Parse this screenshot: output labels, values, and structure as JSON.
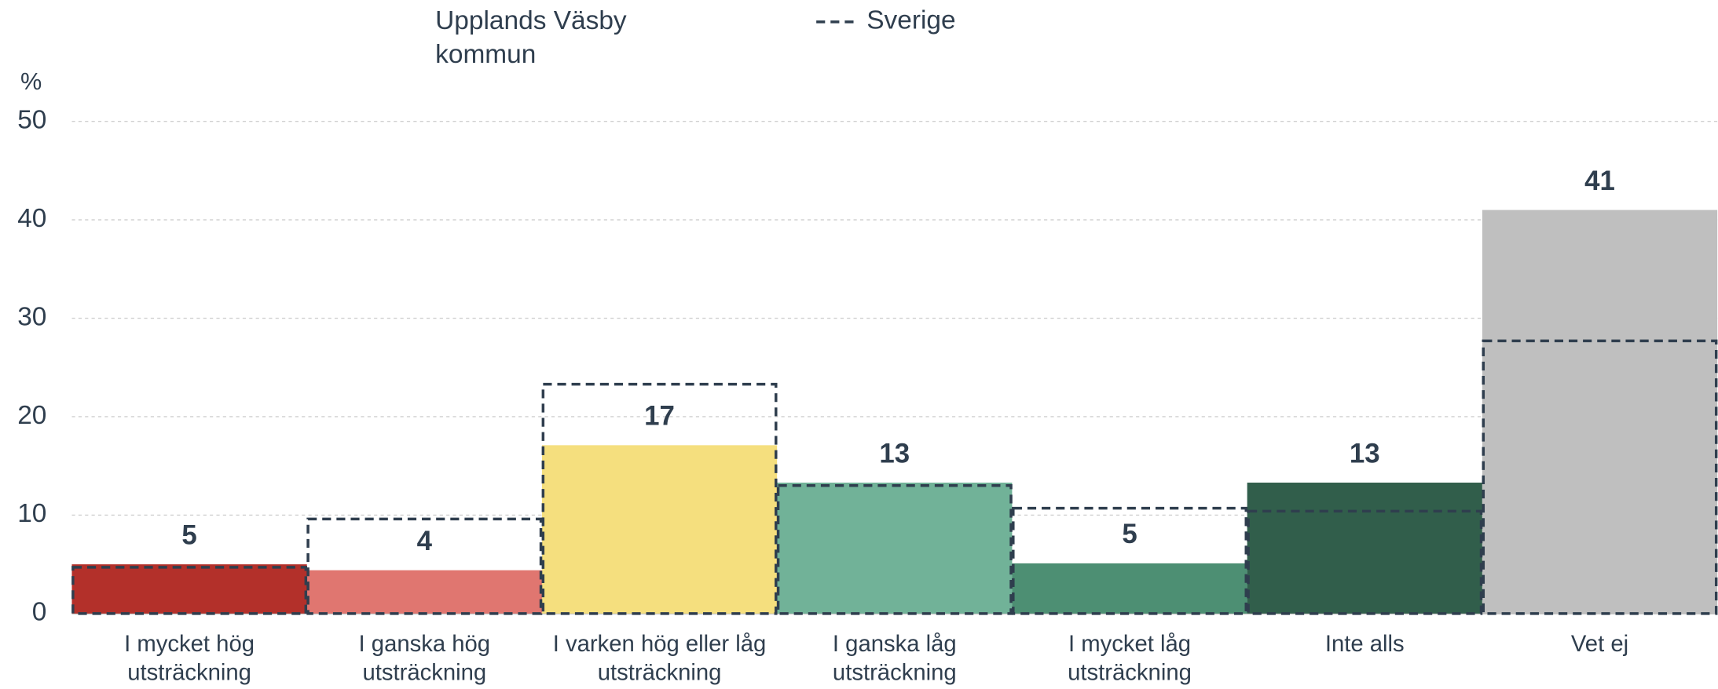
{
  "chart_data": {
    "type": "bar",
    "y_unit": "%",
    "categories": [
      "I mycket hög utsträckning",
      "I ganska hög utsträckning",
      "I varken hög eller låg utsträckning",
      "I ganska låg utsträckning",
      "I mycket låg utsträckning",
      "Inte alls",
      "Vet ej"
    ],
    "series": [
      {
        "name": "Upplands Väsby kommun",
        "colors": [
          "#b3302a",
          "#e07670",
          "#f5df7e",
          "#71b298",
          "#4d8f73",
          "#315e4b",
          "#bfbfbf"
        ],
        "values": [
          5.0,
          4.4,
          17.1,
          13.3,
          5.1,
          13.3,
          41.0
        ],
        "value_labels": [
          "5",
          "4",
          "17",
          "13",
          "5",
          "13",
          "41"
        ]
      },
      {
        "name": "Sverige",
        "color": "#2f3e4e",
        "style": "dashed",
        "values": [
          4.7,
          9.6,
          23.3,
          13.0,
          10.7,
          10.4,
          27.7
        ]
      }
    ],
    "ylim": [
      0,
      50
    ],
    "yticks": [
      0,
      10,
      20,
      30,
      40,
      50
    ],
    "grid": true
  }
}
